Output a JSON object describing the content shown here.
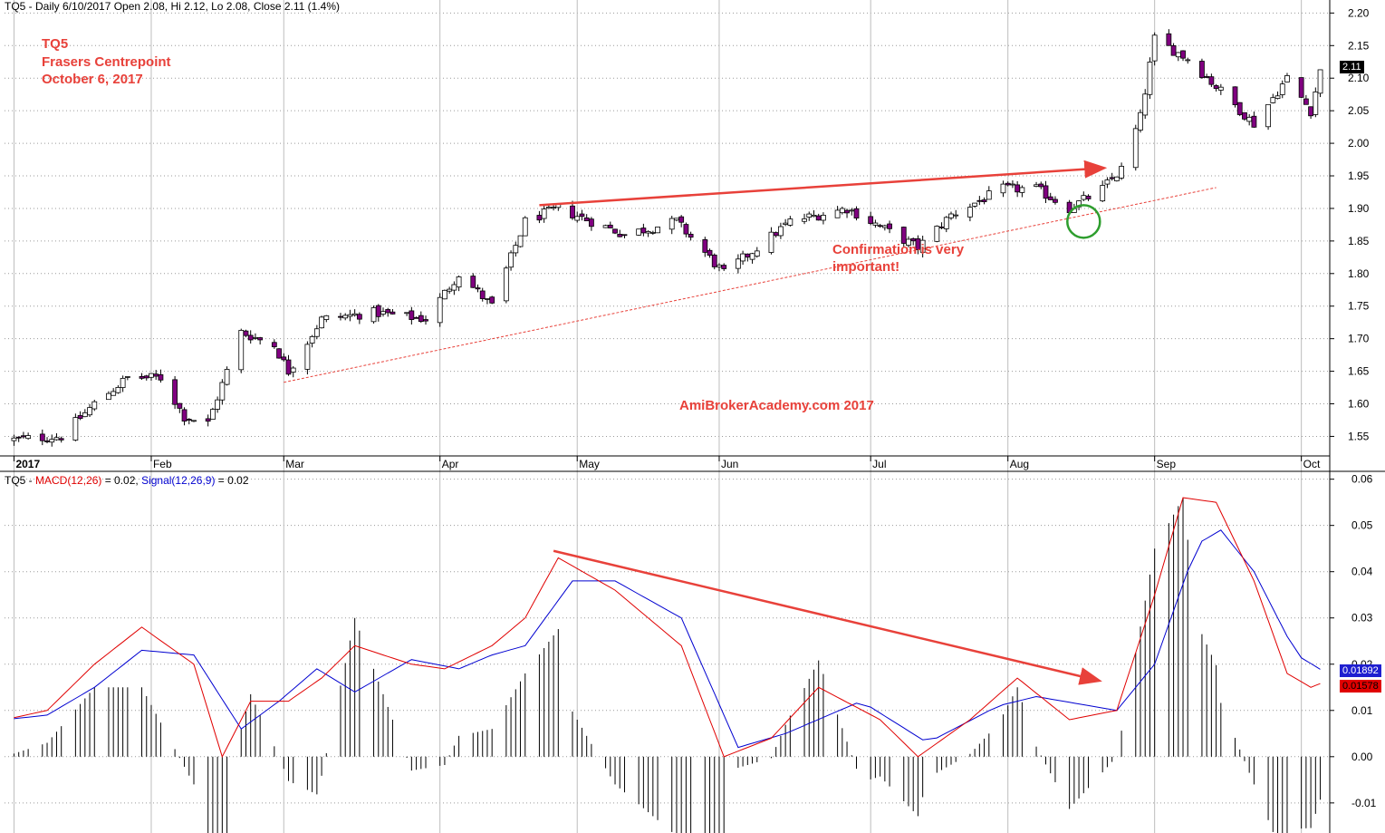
{
  "colors": {
    "up_body": "#ffffff",
    "down_body": "#800080",
    "wick": "#000000",
    "macd": "#e00000",
    "signal": "#0000d0",
    "annotation": "#e8413a",
    "circle": "#2e9e2e"
  },
  "header": {
    "price_prefix": "TQ5 - Daily 6/10/2017 Open 2.08, Hi 2.12, Lo 2.08, Close 2.11 (1.4%)",
    "macd_prefix": "TQ5 - ",
    "macd_label": "MACD(12,26)",
    "macd_value": " = 0.02, ",
    "signal_label": "Signal(12,26,9)",
    "signal_value": " = 0.02"
  },
  "notes": {
    "title_1": "TQ5",
    "title_2": "Frasers Centrepoint",
    "title_3": "October 6, 2017",
    "confirmation": "Confirmation is very",
    "confirmation_2": "important!",
    "watermark": "AmiBrokerAcademy.com  2017"
  },
  "badges": {
    "last_price": "2.11",
    "signal_last": "0.01892",
    "macd_last": "0.01578"
  },
  "chart_data": [
    {
      "type": "candlestick",
      "ylim": [
        1.52,
        2.22
      ],
      "yticks": [
        "1.55",
        "1.60",
        "1.65",
        "1.70",
        "1.75",
        "1.80",
        "1.85",
        "1.90",
        "1.95",
        "2.00",
        "2.05",
        "2.10",
        "2.15",
        "2.20"
      ],
      "x_months": [
        "2017",
        "Feb",
        "Mar",
        "Apr",
        "May",
        "Jun",
        "Jul",
        "Aug",
        "Sep",
        "Oct"
      ],
      "anchors": [
        {
          "date": "2017-01-03",
          "close": 1.545
        },
        {
          "date": "2017-01-13",
          "close": 1.55
        },
        {
          "date": "2017-01-20",
          "close": 1.6
        },
        {
          "date": "2017-01-27",
          "close": 1.64
        },
        {
          "date": "2017-02-03",
          "close": 1.64
        },
        {
          "date": "2017-02-08",
          "close": 1.58
        },
        {
          "date": "2017-02-13",
          "close": 1.57
        },
        {
          "date": "2017-02-20",
          "close": 1.71
        },
        {
          "date": "2017-02-27",
          "close": 1.69
        },
        {
          "date": "2017-03-02",
          "close": 1.65
        },
        {
          "date": "2017-03-09",
          "close": 1.73
        },
        {
          "date": "2017-03-20",
          "close": 1.74
        },
        {
          "date": "2017-03-31",
          "close": 1.73
        },
        {
          "date": "2017-04-07",
          "close": 1.8
        },
        {
          "date": "2017-04-14",
          "close": 1.75
        },
        {
          "date": "2017-04-21",
          "close": 1.88
        },
        {
          "date": "2017-04-28",
          "close": 1.9
        },
        {
          "date": "2017-05-12",
          "close": 1.86
        },
        {
          "date": "2017-05-23",
          "close": 1.88
        },
        {
          "date": "2017-06-02",
          "close": 1.8
        },
        {
          "date": "2017-06-09",
          "close": 1.84
        },
        {
          "date": "2017-06-16",
          "close": 1.88
        },
        {
          "date": "2017-06-28",
          "close": 1.9
        },
        {
          "date": "2017-07-13",
          "close": 1.84
        },
        {
          "date": "2017-07-20",
          "close": 1.89
        },
        {
          "date": "2017-07-31",
          "close": 1.93
        },
        {
          "date": "2017-08-07",
          "close": 1.93
        },
        {
          "date": "2017-08-14",
          "close": 1.9
        },
        {
          "date": "2017-08-21",
          "close": 1.93
        },
        {
          "date": "2017-08-25",
          "close": 1.96
        },
        {
          "date": "2017-08-29",
          "close": 2.04
        },
        {
          "date": "2017-09-01",
          "close": 2.16
        },
        {
          "date": "2017-09-08",
          "close": 2.13
        },
        {
          "date": "2017-09-15",
          "close": 2.08
        },
        {
          "date": "2017-09-22",
          "close": 2.03
        },
        {
          "date": "2017-09-29",
          "close": 2.1
        },
        {
          "date": "2017-10-04",
          "close": 2.05
        },
        {
          "date": "2017-10-06",
          "close": 2.11
        }
      ],
      "trendlines": [
        {
          "start": [
            "2017-04-24",
            1.905
          ],
          "end": [
            "2017-08-21",
            1.962
          ],
          "style": "solid",
          "arrow": true
        },
        {
          "start": [
            "2017-03-01",
            1.633
          ],
          "end": [
            "2017-09-14",
            1.932
          ],
          "style": "dashed",
          "arrow": false
        }
      ],
      "circle": {
        "date": "2017-08-17",
        "price": 1.88
      }
    },
    {
      "type": "line",
      "ylim": [
        -0.0165,
        0.0615
      ],
      "yticks": [
        "-0.01",
        "0.00",
        "0.01",
        "0.02",
        "0.03",
        "0.04",
        "0.05",
        "0.06"
      ],
      "series": [
        {
          "name": "MACD(12,26)",
          "anchors": [
            [
              "2017-01-01",
              0.008
            ],
            [
              "2017-01-10",
              0.01
            ],
            [
              "2017-01-20",
              0.02
            ],
            [
              "2017-01-30",
              0.028
            ],
            [
              "2017-02-10",
              0.02
            ],
            [
              "2017-02-16",
              0.0
            ],
            [
              "2017-02-22",
              0.012
            ],
            [
              "2017-03-02",
              0.012
            ],
            [
              "2017-03-09",
              0.017
            ],
            [
              "2017-03-16",
              0.024
            ],
            [
              "2017-03-28",
              0.02
            ],
            [
              "2017-04-04",
              0.019
            ],
            [
              "2017-04-14",
              0.024
            ],
            [
              "2017-04-21",
              0.03
            ],
            [
              "2017-04-28",
              0.043
            ],
            [
              "2017-05-10",
              0.036
            ],
            [
              "2017-05-24",
              0.024
            ],
            [
              "2017-06-02",
              0.0
            ],
            [
              "2017-06-12",
              0.004
            ],
            [
              "2017-06-22",
              0.015
            ],
            [
              "2017-07-05",
              0.008
            ],
            [
              "2017-07-13",
              0.0
            ],
            [
              "2017-07-24",
              0.008
            ],
            [
              "2017-08-03",
              0.017
            ],
            [
              "2017-08-14",
              0.008
            ],
            [
              "2017-08-24",
              0.01
            ],
            [
              "2017-09-01",
              0.035
            ],
            [
              "2017-09-07",
              0.056
            ],
            [
              "2017-09-14",
              0.055
            ],
            [
              "2017-09-22",
              0.038
            ],
            [
              "2017-09-29",
              0.018
            ],
            [
              "2017-10-04",
              0.015
            ],
            [
              "2017-10-06",
              0.0158
            ]
          ]
        },
        {
          "name": "Signal(12,26,9)",
          "anchors": [
            [
              "2017-01-01",
              0.008
            ],
            [
              "2017-01-10",
              0.009
            ],
            [
              "2017-01-20",
              0.015
            ],
            [
              "2017-01-30",
              0.023
            ],
            [
              "2017-02-10",
              0.022
            ],
            [
              "2017-02-20",
              0.006
            ],
            [
              "2017-02-28",
              0.012
            ],
            [
              "2017-03-08",
              0.019
            ],
            [
              "2017-03-16",
              0.014
            ],
            [
              "2017-03-28",
              0.021
            ],
            [
              "2017-04-07",
              0.019
            ],
            [
              "2017-04-14",
              0.022
            ],
            [
              "2017-04-21",
              0.024
            ],
            [
              "2017-05-01",
              0.038
            ],
            [
              "2017-05-10",
              0.038
            ],
            [
              "2017-05-24",
              0.03
            ],
            [
              "2017-06-05",
              0.002
            ],
            [
              "2017-06-15",
              0.005
            ],
            [
              "2017-07-01",
              0.012
            ],
            [
              "2017-07-15",
              0.003
            ],
            [
              "2017-07-30",
              0.011
            ],
            [
              "2017-08-07",
              0.013
            ],
            [
              "2017-08-24",
              0.01
            ],
            [
              "2017-09-01",
              0.02
            ],
            [
              "2017-09-10",
              0.046
            ],
            [
              "2017-09-15",
              0.049
            ],
            [
              "2017-09-22",
              0.04
            ],
            [
              "2017-10-01",
              0.022
            ],
            [
              "2017-10-06",
              0.0189
            ]
          ]
        }
      ]
    }
  ]
}
